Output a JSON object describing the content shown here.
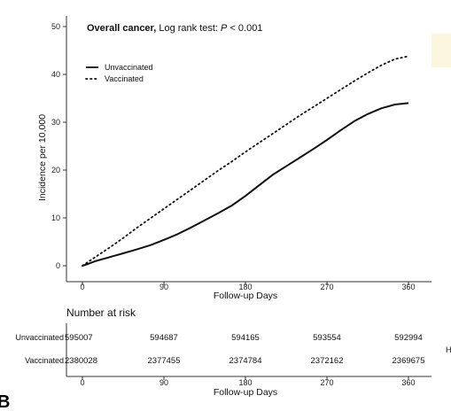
{
  "chart_data": {
    "type": "line",
    "title_bold": "Overall cancer,",
    "title_rest": " Log rank test: ",
    "title_p_italic": "P",
    "title_p_value": " < 0.001",
    "xlabel": "Follow-up Days",
    "ylabel": "Incidence per 10,000",
    "xlim": [
      0,
      360
    ],
    "ylim": [
      0,
      50
    ],
    "x_ticks": [
      "0",
      "90",
      "180",
      "270",
      "360"
    ],
    "y_ticks": [
      "0",
      "10",
      "20",
      "30",
      "40",
      "50"
    ],
    "legend_position": "top-left",
    "series": [
      {
        "name": "Unvaccinated",
        "style": "solid",
        "x": [
          0,
          5,
          15,
          30,
          45,
          60,
          75,
          90,
          105,
          120,
          135,
          150,
          165,
          180,
          195,
          210,
          225,
          240,
          255,
          270,
          285,
          300,
          315,
          330,
          345,
          360
        ],
        "y": [
          0,
          0.3,
          1.0,
          1.8,
          2.6,
          3.4,
          4.3,
          5.4,
          6.6,
          8.0,
          9.5,
          11.0,
          12.6,
          14.6,
          16.8,
          19.0,
          20.8,
          22.6,
          24.4,
          26.3,
          28.3,
          30.2,
          31.7,
          32.9,
          33.7,
          34.0
        ]
      },
      {
        "name": "Vaccinated",
        "style": "dotted",
        "x": [
          0,
          15,
          30,
          45,
          60,
          75,
          90,
          105,
          120,
          135,
          150,
          165,
          180,
          195,
          210,
          225,
          240,
          255,
          270,
          285,
          300,
          315,
          330,
          345,
          360
        ],
        "y": [
          0,
          1.9,
          3.8,
          5.8,
          7.9,
          9.9,
          11.9,
          13.9,
          15.9,
          17.9,
          19.9,
          21.8,
          23.8,
          25.7,
          27.6,
          29.5,
          31.4,
          33.2,
          35.0,
          36.8,
          38.6,
          40.3,
          41.9,
          43.2,
          43.8
        ]
      }
    ]
  },
  "risk_table": {
    "title": "Number at risk",
    "xlabel": "Follow-up Days",
    "x_ticks": [
      "0",
      "90",
      "180",
      "270",
      "360"
    ],
    "rows": [
      {
        "label": "Unvaccinated",
        "values": [
          "595007",
          "594687",
          "594165",
          "593554",
          "592994"
        ]
      },
      {
        "label": "Vaccinated",
        "values": [
          "2380028",
          "2377455",
          "2374784",
          "2372162",
          "2369675"
        ]
      }
    ]
  },
  "panel_letter": "B",
  "edge_letter": "H",
  "colors": {
    "line": "#111111",
    "axis": "#333333",
    "faint_box": "#fdf6df"
  }
}
